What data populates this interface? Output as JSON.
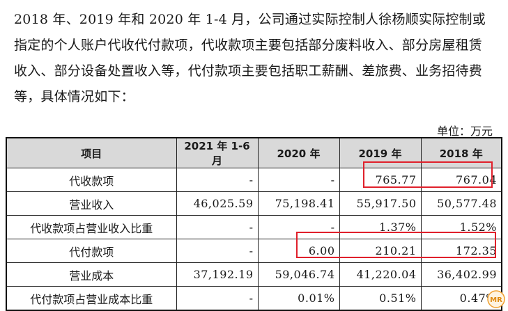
{
  "paragraph": {
    "lines": [
      "2018 年、2019 年和 2020 年 1-4 月，公司通过实际控制人徐杨顺实际控制或",
      "指定的个人账户代收代付款项，代收款项主要包括部分废料收入、部分房屋租赁",
      "收入、部分设备处置收入等，代付款项主要包括职工薪酬、差旅费、业务招待费",
      "等，具体情况如下："
    ]
  },
  "unit_label": "单位：万元",
  "table": {
    "headers": [
      "项目",
      "2021 年 1-6 月",
      "2020 年",
      "2019 年",
      "2018 年"
    ],
    "rows": [
      {
        "label": "代收款项",
        "values": [
          "-",
          "-",
          "765.77",
          "767.04"
        ]
      },
      {
        "label": "营业收入",
        "values": [
          "46,025.59",
          "75,198.41",
          "55,917.50",
          "50,577.48"
        ]
      },
      {
        "label": "代收款项占营业收入比重",
        "values": [
          "-",
          "-",
          "1.37%",
          "1.52%"
        ]
      },
      {
        "label": "代付款项",
        "values": [
          "-",
          "6.00",
          "210.21",
          "172.35"
        ]
      },
      {
        "label": "营业成本",
        "values": [
          "37,192.19",
          "59,046.74",
          "41,220.04",
          "36,402.99"
        ]
      },
      {
        "label": "代付款项占营业成本比重",
        "values": [
          "-",
          "0.01%",
          "0.51%",
          "0.47%"
        ]
      }
    ]
  },
  "highlight_color": "#e0202b",
  "watermark_logo": {
    "icon": "mr-logo-icon",
    "text": "MR"
  }
}
